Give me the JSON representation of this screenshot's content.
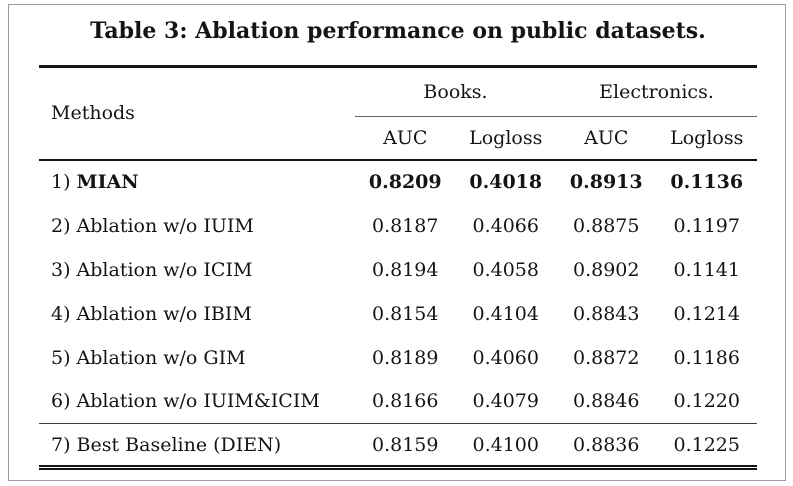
{
  "title": "Table 3: Ablation performance on public datasets.",
  "table": {
    "methods_header": "Methods",
    "groups": [
      {
        "label": "Books.",
        "columns": [
          "AUC",
          "Logloss"
        ]
      },
      {
        "label": "Electronics.",
        "columns": [
          "AUC",
          "Logloss"
        ]
      }
    ],
    "rows": [
      {
        "prefix": "1) ",
        "name": "MIAN",
        "values": [
          "0.8209",
          "0.4018",
          "0.8913",
          "0.1136"
        ]
      },
      {
        "method": "2) Ablation w/o IUIM",
        "values": [
          "0.8187",
          "0.4066",
          "0.8875",
          "0.1197"
        ]
      },
      {
        "method": "3) Ablation w/o ICIM",
        "values": [
          "0.8194",
          "0.4058",
          "0.8902",
          "0.1141"
        ]
      },
      {
        "method": "4) Ablation w/o IBIM",
        "values": [
          "0.8154",
          "0.4104",
          "0.8843",
          "0.1214"
        ]
      },
      {
        "method": "5) Ablation w/o GIM",
        "values": [
          "0.8189",
          "0.4060",
          "0.8872",
          "0.1186"
        ]
      },
      {
        "method": "6) Ablation w/o IUIM&ICIM",
        "values": [
          "0.8166",
          "0.4079",
          "0.8846",
          "0.1220"
        ]
      }
    ],
    "baseline": {
      "method": "7) Best Baseline (DIEN)",
      "values": [
        "0.8159",
        "0.4100",
        "0.8836",
        "0.1225"
      ]
    }
  },
  "colors": {
    "background": "#ffffff",
    "text": "#141414",
    "frame_border": "#9b9b9b",
    "rule_heavy": "#141414",
    "rule_group": "#666666",
    "rule_separator": "#3d3d3d"
  }
}
